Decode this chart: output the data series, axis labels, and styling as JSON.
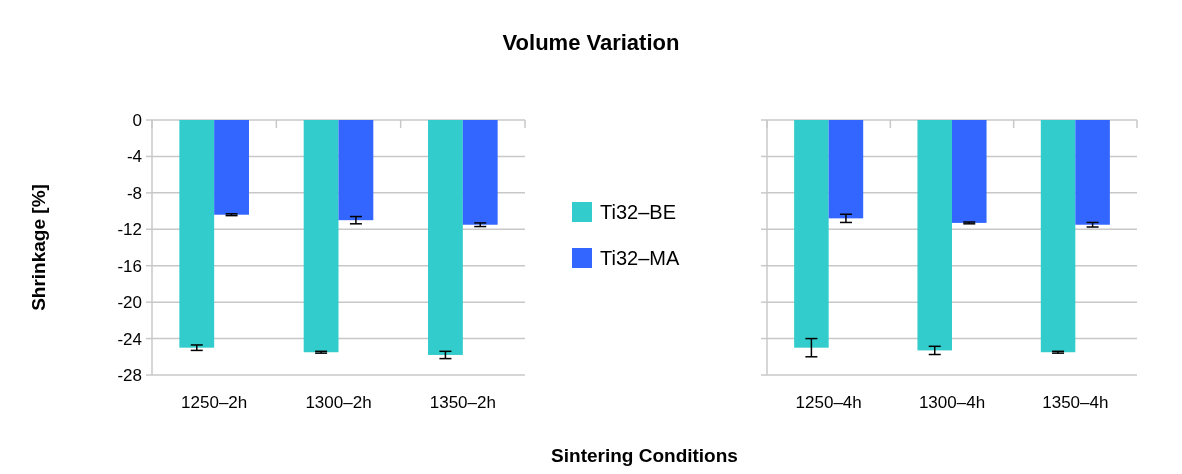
{
  "chart_data": [
    {
      "type": "bar",
      "title": "Volume Variation",
      "xlabel": "Sintering Conditions",
      "ylabel": "Shrinkage [%]",
      "categories": [
        "1250–2h",
        "1300–2h",
        "1350–2h"
      ],
      "series": [
        {
          "name": "Ti32–BE",
          "color": "#33cccc",
          "values": [
            -25.0,
            -25.5,
            -25.8
          ],
          "errors": [
            0.3,
            0.1,
            0.4
          ]
        },
        {
          "name": "Ti32–MA",
          "color": "#3366ff",
          "values": [
            -10.4,
            -11.0,
            -11.5
          ],
          "errors": [
            0.1,
            0.4,
            0.2
          ]
        }
      ],
      "ylim": [
        -28,
        0
      ],
      "yticks": [
        0,
        -4,
        -8,
        -12,
        -16,
        -20,
        -24,
        -28
      ],
      "grid": "y",
      "legend": "right"
    },
    {
      "type": "bar",
      "categories": [
        "1250–4h",
        "1300–4h",
        "1350–4h"
      ],
      "series": [
        {
          "color": "#33cccc",
          "values": [
            -25.0,
            -25.3,
            -25.5
          ],
          "errors": [
            1.0,
            0.45,
            0.1
          ]
        },
        {
          "color": "#3366ff",
          "values": [
            -10.8,
            -11.3,
            -11.5
          ],
          "errors": [
            0.45,
            0.1,
            0.25
          ]
        }
      ],
      "ylim": [
        -28,
        0
      ],
      "yticks": [
        0,
        -4,
        -8,
        -12,
        -16,
        -20,
        -24,
        -28
      ],
      "grid": "y",
      "legend": false,
      "tick_labels": "x"
    }
  ]
}
